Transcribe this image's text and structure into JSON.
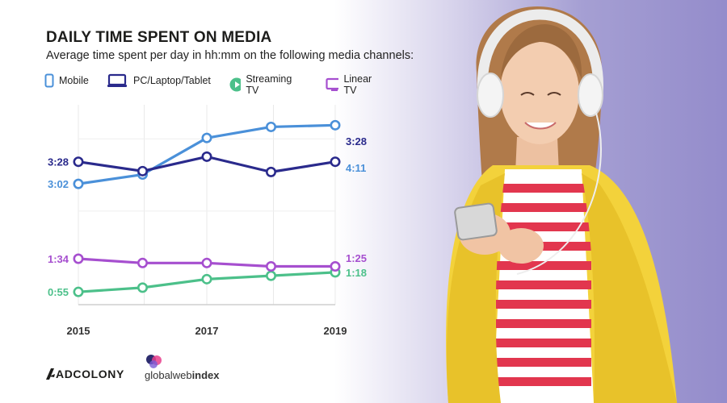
{
  "header": {
    "title": "DAILY TIME SPENT ON MEDIA",
    "subtitle": "Average time spent per day in hh:mm on the following media channels:"
  },
  "legend": [
    {
      "label": "Mobile",
      "icon": "mobile-phone-icon",
      "color": "#4a90d9"
    },
    {
      "label": "PC/Laptop/Tablet",
      "icon": "monitor-icon",
      "color": "#2a2a8c"
    },
    {
      "label": "Streaming TV",
      "icon": "play-circle-icon",
      "color": "#4cc08a"
    },
    {
      "label": "Linear TV",
      "icon": "tv-icon",
      "color": "#a64fcf"
    }
  ],
  "chart_data": {
    "type": "line",
    "x": [
      2015,
      2016,
      2017,
      2018,
      2019
    ],
    "x_tick_labels": [
      "2015",
      "2017",
      "2019"
    ],
    "y_unit": "minutes",
    "ylim": [
      40,
      275
    ],
    "grid": true,
    "series": [
      {
        "name": "Mobile",
        "color": "#4a90d9",
        "values": [
          182,
          193,
          236,
          249,
          251
        ],
        "start_label": "3:02",
        "end_label": "4:11"
      },
      {
        "name": "PC/Laptop/Tablet",
        "color": "#2a2a8c",
        "values": [
          208,
          197,
          214,
          196,
          208
        ],
        "start_label": "3:28",
        "end_label": "3:28"
      },
      {
        "name": "Streaming TV",
        "color": "#4cc08a",
        "values": [
          55,
          60,
          70,
          74,
          78
        ],
        "start_label": "0:55",
        "end_label": "1:18"
      },
      {
        "name": "Linear TV",
        "color": "#a64fcf",
        "values": [
          94,
          89,
          89,
          85,
          85
        ],
        "start_label": "1:34",
        "end_label": "1:25"
      }
    ]
  },
  "brands": {
    "adcolony": "ADCOLONY",
    "gwi_light": "global",
    "gwi_mid": "web",
    "gwi_bold": "index"
  }
}
